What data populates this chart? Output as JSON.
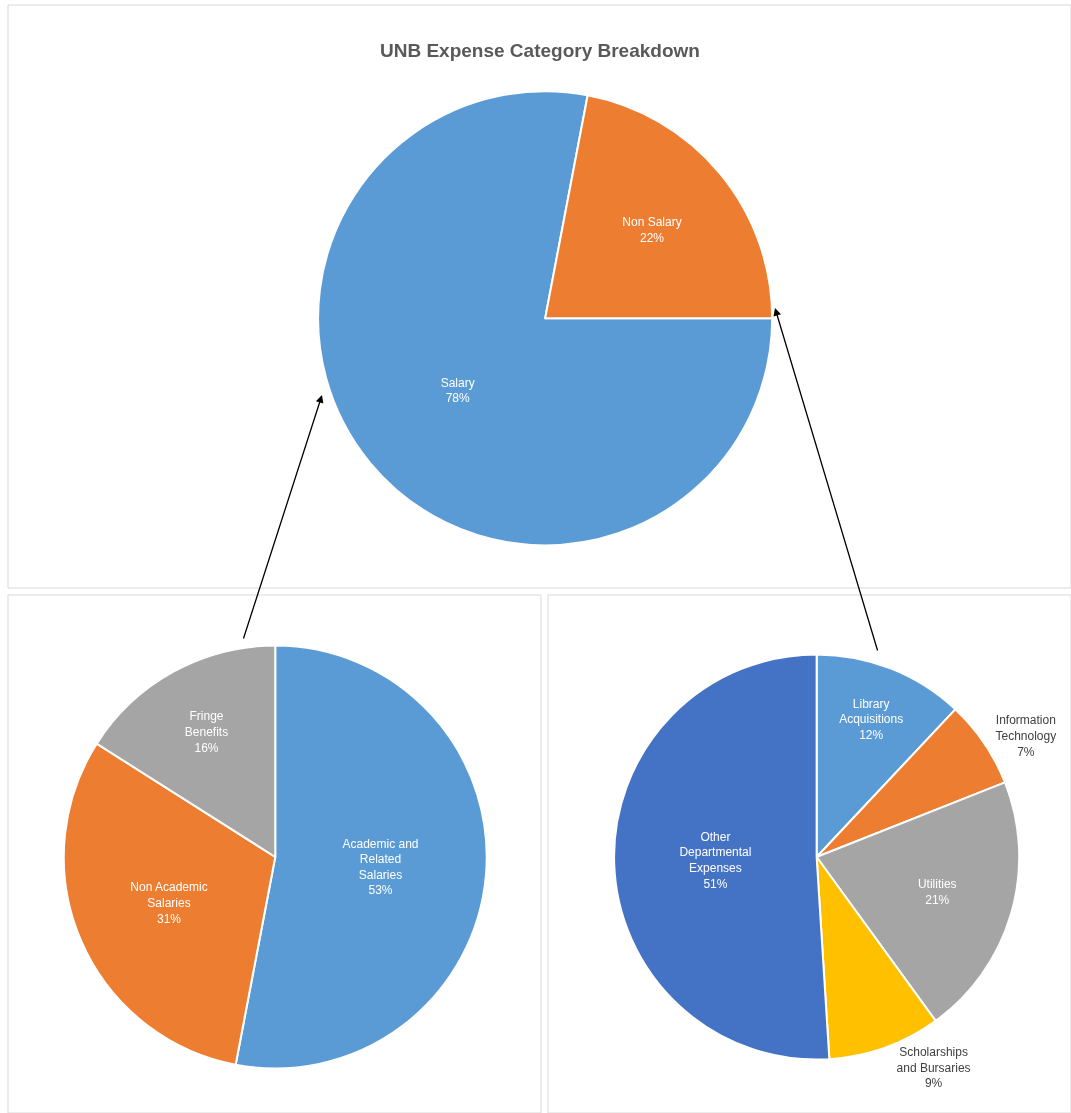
{
  "chart_data": [
    {
      "type": "pie",
      "title": "UNB Expense Category Breakdown",
      "categories": [
        "Salary",
        "Non Salary"
      ],
      "values": [
        78,
        22
      ],
      "colors": [
        "#5b9bd5",
        "#ed7d31"
      ],
      "value_labels": [
        "78%",
        "22%"
      ]
    },
    {
      "type": "pie",
      "categories": [
        "Academic and Related Salaries",
        "Non Academic Salaries",
        "Fringe Benefits"
      ],
      "values": [
        53,
        31,
        16
      ],
      "colors": [
        "#5b9bd5",
        "#ed7d31",
        "#a5a5a5"
      ],
      "value_labels": [
        "53%",
        "31%",
        "16%"
      ]
    },
    {
      "type": "pie",
      "categories": [
        "Library Acquisitions",
        "Information Technology",
        "Utilities",
        "Scholarships and Bursaries",
        "Other Departmental Expenses"
      ],
      "values": [
        12,
        7,
        21,
        9,
        51
      ],
      "colors": [
        "#5b9bd5",
        "#ed7d31",
        "#a5a5a5",
        "#ffc000",
        "#4472c4"
      ],
      "value_labels": [
        "12%",
        "7%",
        "21%",
        "9%",
        "51%"
      ]
    }
  ]
}
